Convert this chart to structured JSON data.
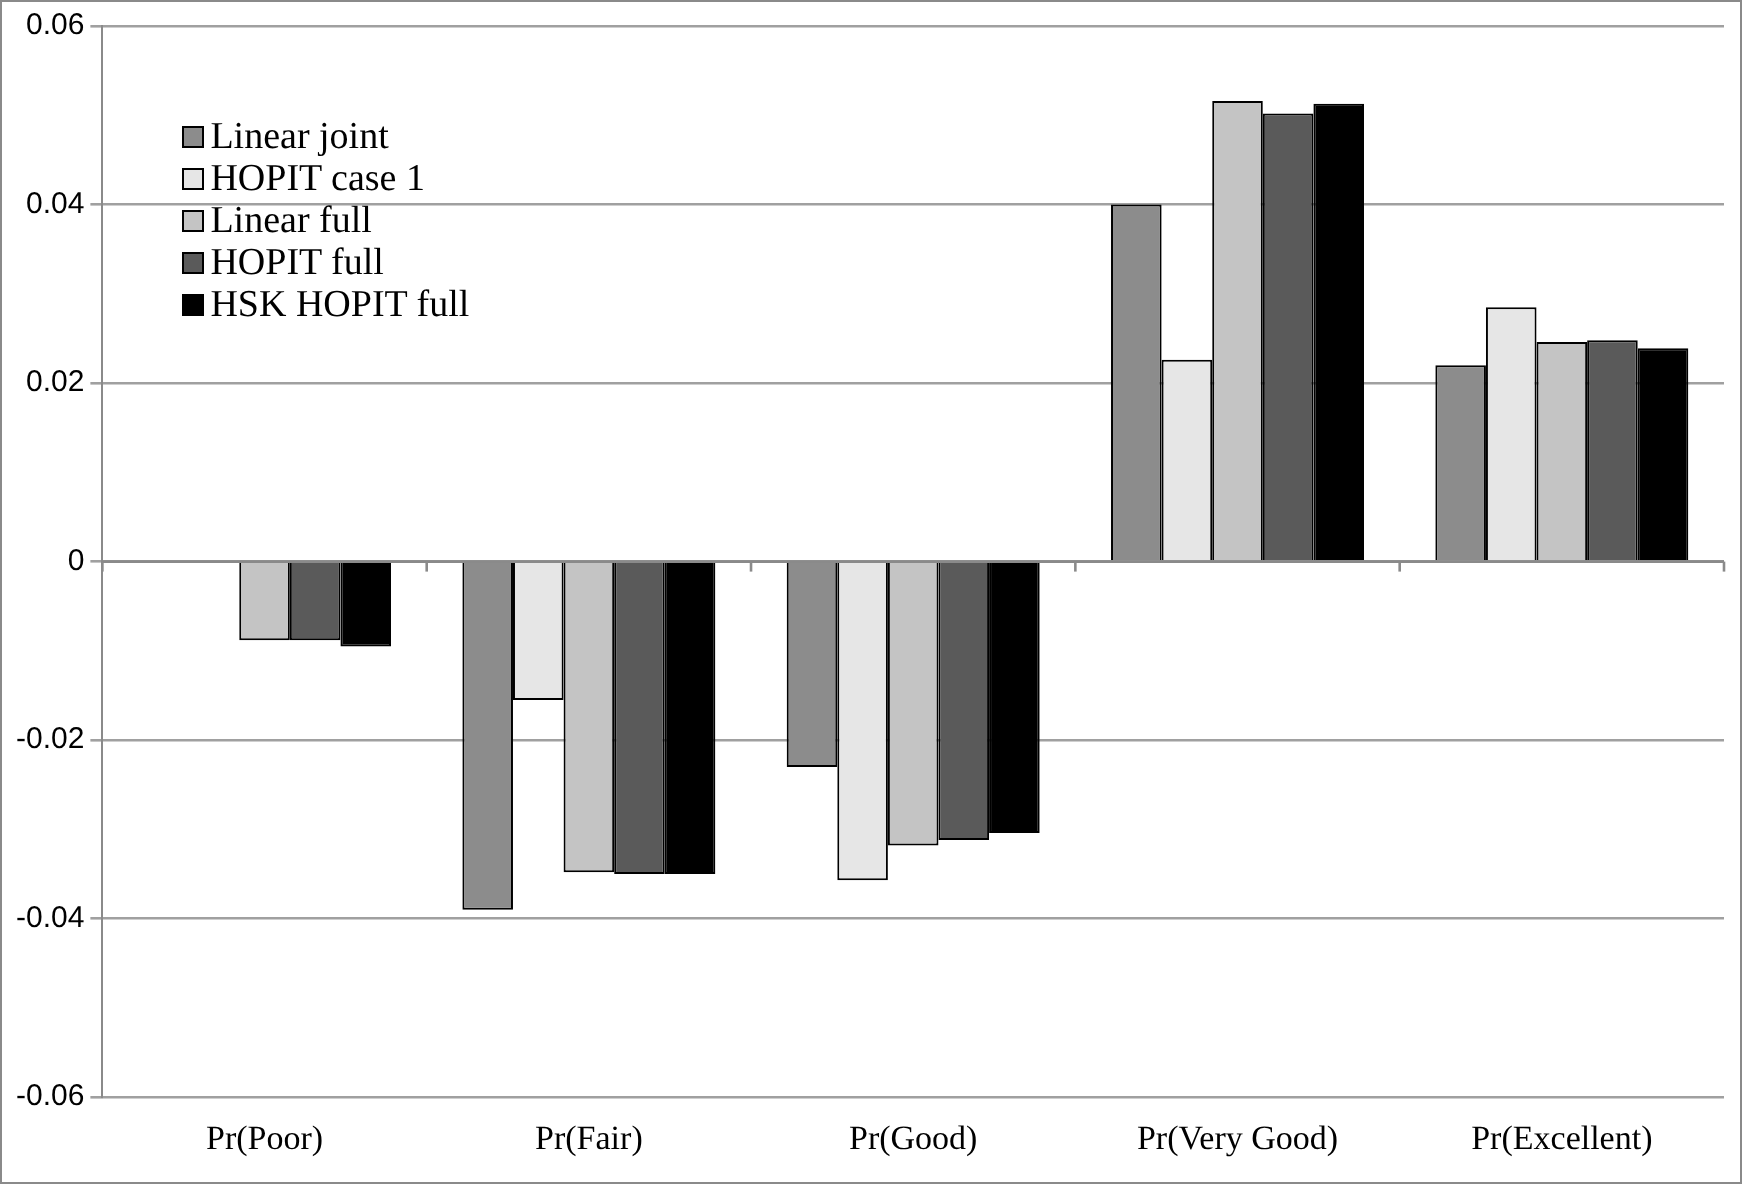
{
  "chart_data": {
    "type": "bar",
    "categories": [
      "Pr(Poor)",
      "Pr(Fair)",
      "Pr(Good)",
      "Pr(Very Good)",
      "Pr(Excellent)"
    ],
    "series": [
      {
        "name": "Linear joint",
        "color": "#8c8c8c",
        "values": [
          null,
          -0.039,
          -0.023,
          0.04,
          0.022
        ]
      },
      {
        "name": "HOPIT case 1",
        "color": "#e6e6e6",
        "values": [
          null,
          -0.0155,
          -0.0357,
          0.0226,
          0.0285
        ]
      },
      {
        "name": "Linear full",
        "color": "#c4c4c4",
        "values": [
          -0.0088,
          -0.0348,
          -0.0318,
          0.0516,
          0.0246
        ]
      },
      {
        "name": "HOPIT full",
        "color": "#5a5a5a",
        "values": [
          -0.0088,
          -0.035,
          -0.0312,
          0.0502,
          0.0248
        ]
      },
      {
        "name": "HSK HOPIT full",
        "color": "#000000",
        "values": [
          -0.0095,
          -0.035,
          -0.0304,
          0.0513,
          0.0239
        ]
      }
    ],
    "ylim": [
      -0.06,
      0.06
    ],
    "yticks": [
      -0.06,
      -0.04,
      -0.02,
      0,
      0.02,
      0.04,
      0.06
    ],
    "grid": "y",
    "legend": "top left"
  }
}
